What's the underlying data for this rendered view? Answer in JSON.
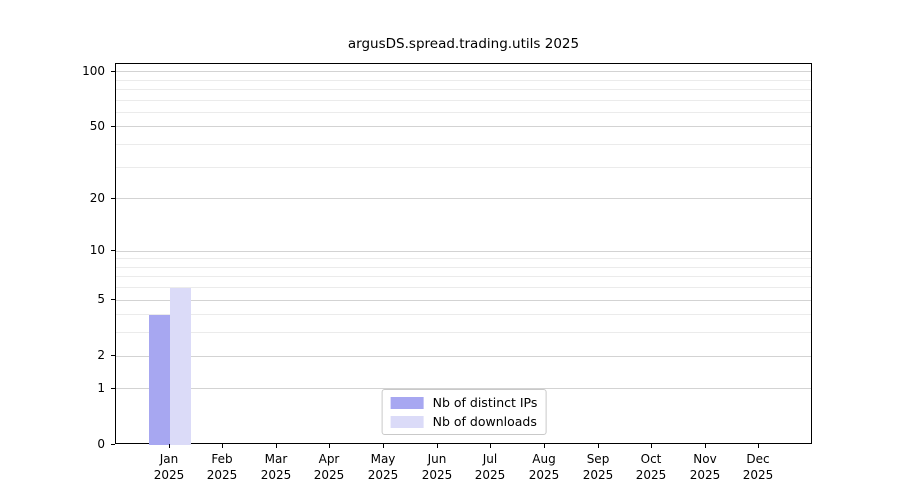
{
  "title": "argusDS.spread.trading.utils 2025",
  "chart_data": {
    "type": "bar",
    "title": "argusDS.spread.trading.utils 2025",
    "categories": [
      "Jan 2025",
      "Feb 2025",
      "Mar 2025",
      "Apr 2025",
      "May 2025",
      "Jun 2025",
      "Jul 2025",
      "Aug 2025",
      "Sep 2025",
      "Oct 2025",
      "Nov 2025",
      "Dec 2025"
    ],
    "x_tick_months": [
      "Jan",
      "Feb",
      "Mar",
      "Apr",
      "May",
      "Jun",
      "Jul",
      "Aug",
      "Sep",
      "Oct",
      "Nov",
      "Dec"
    ],
    "x_tick_year": "2025",
    "series": [
      {
        "name": "Nb of distinct IPs",
        "color": "#a7a7f1",
        "values": [
          4,
          0,
          0,
          0,
          0,
          0,
          0,
          0,
          0,
          0,
          0,
          0
        ]
      },
      {
        "name": "Nb of downloads",
        "color": "#dbdbf8",
        "values": [
          6,
          0,
          0,
          0,
          0,
          0,
          0,
          0,
          0,
          0,
          0,
          0
        ]
      }
    ],
    "yscale": "log1p",
    "ylim": [
      0,
      110
    ],
    "y_major_ticks": [
      0,
      1,
      2,
      5,
      10,
      20,
      50,
      100
    ],
    "y_minor_gridlines": [
      3,
      4,
      6,
      7,
      8,
      9,
      30,
      40,
      60,
      70,
      80,
      90
    ],
    "grid": "both",
    "legend_position": "lower center",
    "xlabel": "",
    "ylabel": ""
  },
  "legend": {
    "items": [
      {
        "label": "Nb of distinct IPs",
        "color": "#a7a7f1"
      },
      {
        "label": "Nb of downloads",
        "color": "#dbdbf8"
      }
    ]
  },
  "colors": {
    "background": "#ffffff",
    "spine": "#000000",
    "major_grid": "#d3d3d3",
    "minor_grid": "#ebebeb",
    "bar_distinct_ips": "#a7a7f1",
    "bar_downloads": "#dbdbf8",
    "text": "#000000"
  }
}
